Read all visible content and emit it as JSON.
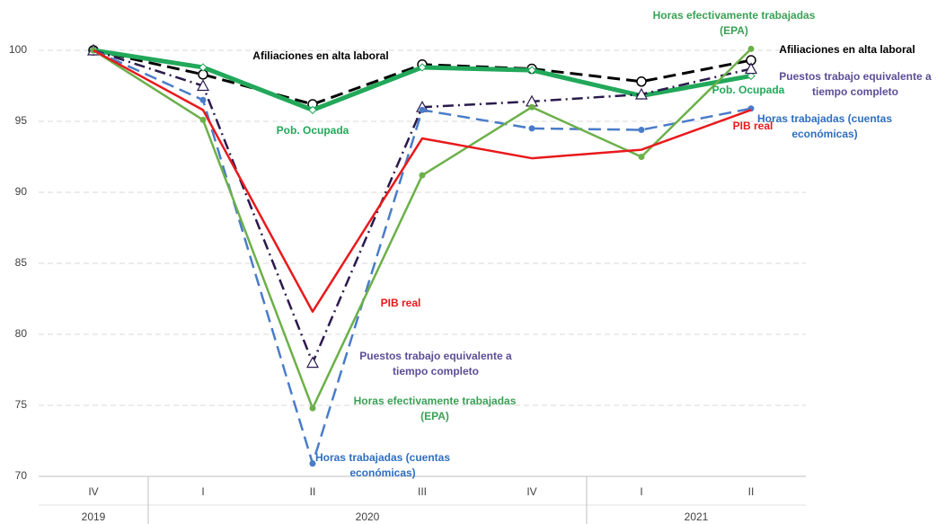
{
  "chart_data": {
    "type": "line",
    "categories": [
      "IV",
      "I",
      "II",
      "III",
      "IV",
      "I",
      "II"
    ],
    "year_groups": [
      {
        "label": "2019",
        "span": 1
      },
      {
        "label": "2020",
        "span": 4
      },
      {
        "label": "2021",
        "span": 2
      }
    ],
    "ylim": [
      70,
      100
    ],
    "yticks": [
      70,
      75,
      80,
      85,
      90,
      95,
      100
    ],
    "grid": true,
    "series": [
      {
        "name": [
          "Afiliaciones en alta laboral"
        ],
        "color": "#000000",
        "marker": "circle-open",
        "dash": "14 7",
        "width": 3,
        "values": [
          100,
          98.3,
          96.2,
          99.0,
          98.7,
          97.8,
          99.3
        ]
      },
      {
        "name": [
          "Pob. Ocupada"
        ],
        "color": "#22a85a",
        "marker": "diamond",
        "dash": "",
        "width": 5,
        "values": [
          100,
          98.8,
          95.8,
          98.8,
          98.6,
          96.8,
          98.2
        ]
      },
      {
        "name": [
          "Puestos trabajo equivalente a",
          "tiempo completo"
        ],
        "color": "#2b1a4d",
        "label_color": "#5d4e95",
        "marker": "triangle",
        "dash": "12 5 2 5",
        "width": 2.5,
        "values": [
          100,
          97.5,
          78.0,
          96.0,
          96.4,
          96.9,
          98.7
        ]
      },
      {
        "name": [
          "Horas trabajadas (cuentas",
          "económicas)"
        ],
        "color": "#4a7cc9",
        "label_color": "#2e6fc0",
        "marker": "dot",
        "dash": "14 7",
        "width": 2.5,
        "values": [
          100,
          96.5,
          70.9,
          95.8,
          94.5,
          94.4,
          95.9
        ]
      },
      {
        "name": [
          "Horas efectivamente trabajadas",
          "(EPA)"
        ],
        "color": "#6cb04a",
        "label_color": "#3aa155",
        "marker": "dot",
        "dash": "",
        "width": 2.5,
        "values": [
          100,
          95.1,
          74.8,
          91.2,
          96.0,
          92.5,
          100.1
        ]
      },
      {
        "name": [
          "PIB real"
        ],
        "color": "#e8191c",
        "marker": "none",
        "dash": "",
        "width": 2.5,
        "values": [
          100,
          95.8,
          81.6,
          93.8,
          92.4,
          93.0,
          95.8
        ]
      }
    ]
  }
}
